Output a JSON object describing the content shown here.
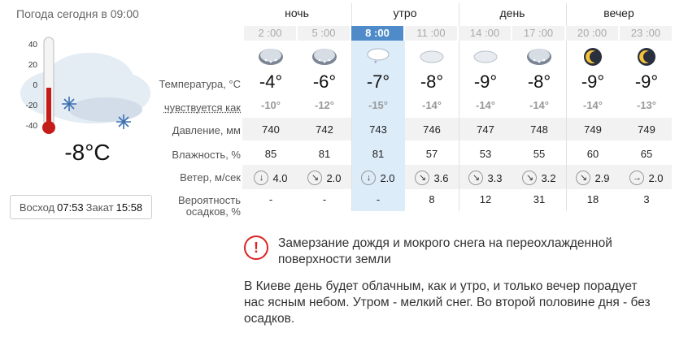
{
  "header": {
    "title": "Погода сегодня в 09:00"
  },
  "current": {
    "temperature": "-8°C",
    "sunrise_label": "Восход",
    "sunrise": "07:53",
    "sunset_label": "Закат",
    "sunset": "15:58",
    "thermometer_scale": [
      "40",
      "20",
      "0",
      "-20",
      "-40"
    ]
  },
  "labels": {
    "temperature": "Температура, °C",
    "feels": "чувствуется как",
    "pressure": "Давление, мм",
    "humidity": "Влажность, %",
    "wind": "Ветер, м/сек",
    "precip_line1": "Вероятность",
    "precip_line2": "осадков, %"
  },
  "periods": [
    "ночь",
    "утро",
    "день",
    "вечер"
  ],
  "columns": [
    {
      "time": "2 :00",
      "icon": "cloud-snow-icon",
      "temp": "-4°",
      "feels": "-10°",
      "pressure": "740",
      "humidity": "85",
      "wind_dir": "↓",
      "wind": "4.0",
      "precip": "-"
    },
    {
      "time": "5 :00",
      "icon": "cloud-snow-icon",
      "temp": "-6°",
      "feels": "-12°",
      "pressure": "742",
      "humidity": "81",
      "wind_dir": "↘",
      "wind": "2.0",
      "precip": "-"
    },
    {
      "time": "8 :00",
      "icon": "light-snow-icon",
      "temp": "-7°",
      "feels": "-15°",
      "pressure": "743",
      "humidity": "81",
      "wind_dir": "↓",
      "wind": "2.0",
      "precip": "-"
    },
    {
      "time": "11 :00",
      "icon": "cloud-icon",
      "temp": "-8°",
      "feels": "-14°",
      "pressure": "746",
      "humidity": "57",
      "wind_dir": "↘",
      "wind": "3.6",
      "precip": "8"
    },
    {
      "time": "14 :00",
      "icon": "cloud-icon",
      "temp": "-9°",
      "feels": "-14°",
      "pressure": "747",
      "humidity": "53",
      "wind_dir": "↘",
      "wind": "3.3",
      "precip": "12"
    },
    {
      "time": "17 :00",
      "icon": "cloud-snow-icon",
      "temp": "-8°",
      "feels": "-14°",
      "pressure": "748",
      "humidity": "55",
      "wind_dir": "↘",
      "wind": "3.2",
      "precip": "31"
    },
    {
      "time": "20 :00",
      "icon": "moon-icon",
      "temp": "-9°",
      "feels": "-14°",
      "pressure": "749",
      "humidity": "60",
      "wind_dir": "↘",
      "wind": "2.9",
      "precip": "18"
    },
    {
      "time": "23 :00",
      "icon": "moon-icon",
      "temp": "-9°",
      "feels": "-13°",
      "pressure": "749",
      "humidity": "65",
      "wind_dir": "→",
      "wind": "2.0",
      "precip": "3"
    }
  ],
  "alert": {
    "icon": "warning-icon",
    "text": "Замерзание дождя и мокрого снега на переохлажденной поверхности земли"
  },
  "description": "В Киеве день будет облачным, как и утро, и только вечер порадует нас ясным небом. Утром - мелкий снег. Во второй половине дня - без осадков."
}
